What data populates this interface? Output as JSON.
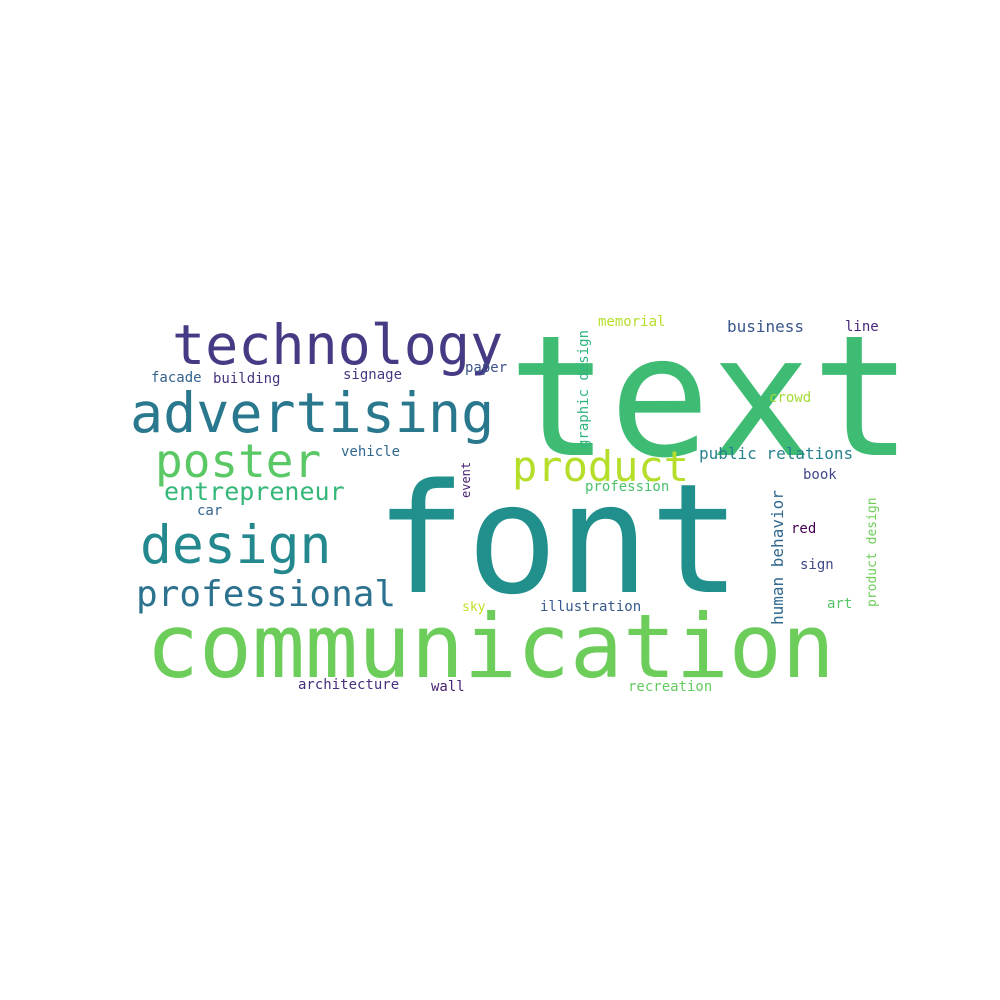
{
  "words": [
    {
      "text": "text",
      "color": "#3fbc73"
    },
    {
      "text": "font",
      "color": "#21908d"
    },
    {
      "text": "communication",
      "color": "#6ccd5a"
    },
    {
      "text": "technology",
      "color": "#443b84"
    },
    {
      "text": "advertising",
      "color": "#2a788e"
    },
    {
      "text": "poster",
      "color": "#5ac864"
    },
    {
      "text": "product",
      "color": "#b5de2b"
    },
    {
      "text": "design",
      "color": "#23898e"
    },
    {
      "text": "entrepreneur",
      "color": "#35b779"
    },
    {
      "text": "professional",
      "color": "#2c728e"
    },
    {
      "text": "business",
      "color": "#39568c"
    },
    {
      "text": "line",
      "color": "#482878"
    },
    {
      "text": "memorial",
      "color": "#b5de2b"
    },
    {
      "text": "graphic design",
      "color": "#2fb47c"
    },
    {
      "text": "paper",
      "color": "#3b528b"
    },
    {
      "text": "signage",
      "color": "#453882"
    },
    {
      "text": "facade",
      "color": "#33638d"
    },
    {
      "text": "building",
      "color": "#46327e"
    },
    {
      "text": "crowd",
      "color": "#a5db36"
    },
    {
      "text": "public relations",
      "color": "#26828e"
    },
    {
      "text": "vehicle",
      "color": "#31688e"
    },
    {
      "text": "event",
      "color": "#481f70"
    },
    {
      "text": "profession",
      "color": "#4ac16d"
    },
    {
      "text": "book",
      "color": "#404688"
    },
    {
      "text": "car",
      "color": "#33638d"
    },
    {
      "text": "human behavior",
      "color": "#31688e"
    },
    {
      "text": "red",
      "color": "#440154"
    },
    {
      "text": "product design",
      "color": "#6ece58"
    },
    {
      "text": "sign",
      "color": "#3e4989"
    },
    {
      "text": "art",
      "color": "#54c568"
    },
    {
      "text": "sky",
      "color": "#c2df23"
    },
    {
      "text": "illustration",
      "color": "#38598c"
    },
    {
      "text": "architecture",
      "color": "#472f7d"
    },
    {
      "text": "wall",
      "color": "#482374"
    },
    {
      "text": "recreation",
      "color": "#63cb5f"
    }
  ]
}
